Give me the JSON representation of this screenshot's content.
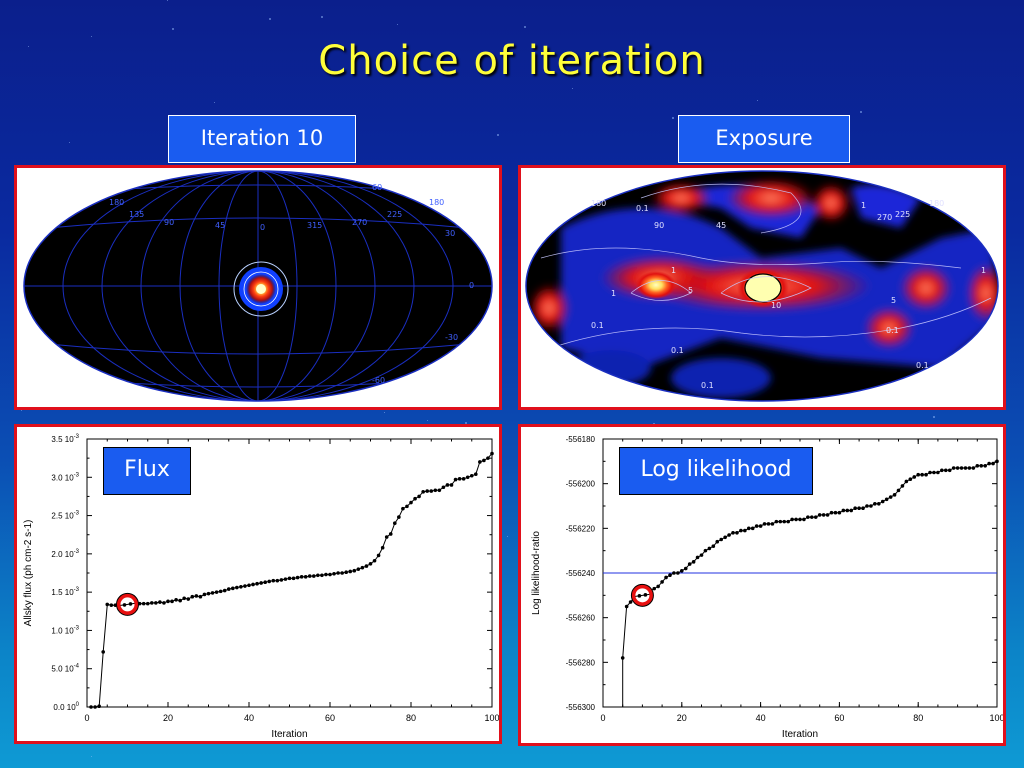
{
  "slide": {
    "title": "Choice of iteration"
  },
  "labels": {
    "iteration": "Iteration 10",
    "exposure": "Exposure",
    "flux": "Flux",
    "loglike": "Log likelihood"
  },
  "maps": {
    "left_lon_labels": [
      "180",
      "135",
      "90",
      "45",
      "0",
      "315",
      "270",
      "225",
      "180"
    ],
    "left_lat_labels": [
      "60",
      "30",
      "0",
      "-30",
      "-60"
    ],
    "right_lon_labels": [
      "180",
      "90",
      "45",
      "270",
      "225",
      "180"
    ],
    "right_contour_labels": [
      "0.1",
      "1",
      "5",
      "10",
      "0.1",
      "1",
      "0.1",
      "1",
      "5",
      "0.1",
      "1",
      "0.1",
      "0.1"
    ]
  },
  "chart_data": [
    {
      "type": "scatter",
      "title": "",
      "xlabel": "Iteration",
      "ylabel": "Allsky flux (ph cm-2 s-1)",
      "xlim": [
        0,
        100
      ],
      "ylim": [
        0,
        0.0035
      ],
      "xticks": [
        "0",
        "20",
        "40",
        "60",
        "80",
        "100"
      ],
      "yticks": [
        {
          "mant": "0.0",
          "exp": "0"
        },
        {
          "mant": "5.0",
          "exp": "-4"
        },
        {
          "mant": "1.0",
          "exp": "-3"
        },
        {
          "mant": "1.5",
          "exp": "-3"
        },
        {
          "mant": "2.0",
          "exp": "-3"
        },
        {
          "mant": "2.5",
          "exp": "-3"
        },
        {
          "mant": "3.0",
          "exp": "-3"
        },
        {
          "mant": "3.5",
          "exp": "-3"
        }
      ],
      "ytick_values": [
        0,
        0.0005,
        0.001,
        0.0015,
        0.002,
        0.0025,
        0.003,
        0.0035
      ],
      "x": [
        1,
        2,
        3,
        4,
        5,
        6,
        7,
        8,
        9,
        10,
        11,
        12,
        13,
        14,
        15,
        16,
        17,
        18,
        19,
        20,
        21,
        22,
        23,
        24,
        25,
        26,
        27,
        28,
        29,
        30,
        31,
        32,
        33,
        34,
        35,
        36,
        37,
        38,
        39,
        40,
        41,
        42,
        43,
        44,
        45,
        46,
        47,
        48,
        49,
        50,
        51,
        52,
        53,
        54,
        55,
        56,
        57,
        58,
        59,
        60,
        61,
        62,
        63,
        64,
        65,
        66,
        67,
        68,
        69,
        70,
        71,
        72,
        73,
        74,
        75,
        76,
        77,
        78,
        79,
        80,
        81,
        82,
        83,
        84,
        85,
        86,
        87,
        88,
        89,
        90,
        91,
        92,
        93,
        94,
        95,
        96,
        97,
        98,
        99,
        100
      ],
      "y": [
        0,
        0,
        1e-05,
        0.00072,
        0.00134,
        0.00133,
        0.00133,
        0.00134,
        0.00133,
        0.00134,
        0.00134,
        0.00134,
        0.00135,
        0.00135,
        0.00135,
        0.00136,
        0.00136,
        0.00137,
        0.00136,
        0.00138,
        0.00138,
        0.0014,
        0.00139,
        0.00142,
        0.00141,
        0.00144,
        0.00145,
        0.00144,
        0.00147,
        0.00148,
        0.00149,
        0.0015,
        0.00151,
        0.00152,
        0.00154,
        0.00155,
        0.00156,
        0.00157,
        0.00158,
        0.00159,
        0.0016,
        0.00161,
        0.00162,
        0.00163,
        0.00164,
        0.00165,
        0.00165,
        0.00166,
        0.00167,
        0.00168,
        0.00168,
        0.00169,
        0.0017,
        0.0017,
        0.00171,
        0.00171,
        0.00172,
        0.00172,
        0.00173,
        0.00173,
        0.00174,
        0.00175,
        0.00175,
        0.00176,
        0.00177,
        0.00178,
        0.0018,
        0.00182,
        0.00184,
        0.00187,
        0.00191,
        0.00198,
        0.00208,
        0.00222,
        0.00226,
        0.0024,
        0.00248,
        0.00259,
        0.00262,
        0.00267,
        0.00272,
        0.00275,
        0.00281,
        0.00282,
        0.00282,
        0.00283,
        0.00283,
        0.00287,
        0.0029,
        0.0029,
        0.00297,
        0.00298,
        0.00298,
        0.003,
        0.00302,
        0.00304,
        0.0032,
        0.00322,
        0.00325,
        0.00331
      ]
    },
    {
      "type": "scatter",
      "title": "",
      "xlabel": "Iteration",
      "ylabel": "Log likelihood-ratio",
      "xlim": [
        0,
        100
      ],
      "ylim": [
        -556300,
        -556180
      ],
      "xticks": [
        "0",
        "20",
        "40",
        "60",
        "80",
        "100"
      ],
      "yticks": [
        "-556300",
        "-556280",
        "-556260",
        "-556240",
        "-556220",
        "-556200",
        "-556180"
      ],
      "ytick_values": [
        -556300,
        -556280,
        -556260,
        -556240,
        -556220,
        -556200,
        -556180
      ],
      "hline": -556240,
      "x": [
        5,
        6,
        7,
        8,
        9,
        10,
        11,
        12,
        13,
        14,
        15,
        16,
        17,
        18,
        19,
        20,
        21,
        22,
        23,
        24,
        25,
        26,
        27,
        28,
        29,
        30,
        31,
        32,
        33,
        34,
        35,
        36,
        37,
        38,
        39,
        40,
        41,
        42,
        43,
        44,
        45,
        46,
        47,
        48,
        49,
        50,
        51,
        52,
        53,
        54,
        55,
        56,
        57,
        58,
        59,
        60,
        61,
        62,
        63,
        64,
        65,
        66,
        67,
        68,
        69,
        70,
        71,
        72,
        73,
        74,
        75,
        76,
        77,
        78,
        79,
        80,
        81,
        82,
        83,
        84,
        85,
        86,
        87,
        88,
        89,
        90,
        91,
        92,
        93,
        94,
        95,
        96,
        97,
        98,
        99,
        100
      ],
      "y": [
        -556278,
        -556255,
        -556253,
        -556251,
        -556250,
        -556250,
        -556249,
        -556248,
        -556247,
        -556246,
        -556244,
        -556242,
        -556241,
        -556240,
        -556240,
        -556239,
        -556238,
        -556236,
        -556235,
        -556233,
        -556232,
        -556230,
        -556229,
        -556228,
        -556226,
        -556225,
        -556224,
        -556223,
        -556222,
        -556222,
        -556221,
        -556221,
        -556220,
        -556220,
        -556219,
        -556219,
        -556218,
        -556218,
        -556218,
        -556217,
        -556217,
        -556217,
        -556217,
        -556216,
        -556216,
        -556216,
        -556216,
        -556215,
        -556215,
        -556215,
        -556214,
        -556214,
        -556214,
        -556213,
        -556213,
        -556213,
        -556212,
        -556212,
        -556212,
        -556211,
        -556211,
        -556211,
        -556210,
        -556210,
        -556209,
        -556209,
        -556208,
        -556207,
        -556206,
        -556205,
        -556203,
        -556201,
        -556199,
        -556198,
        -556197,
        -556196,
        -556196,
        -556196,
        -556195,
        -556195,
        -556195,
        -556194,
        -556194,
        -556194,
        -556193,
        -556193,
        -556193,
        -556193,
        -556193,
        -556193,
        -556192,
        -556192,
        -556192,
        -556191,
        -556191,
        -556190
      ]
    }
  ]
}
